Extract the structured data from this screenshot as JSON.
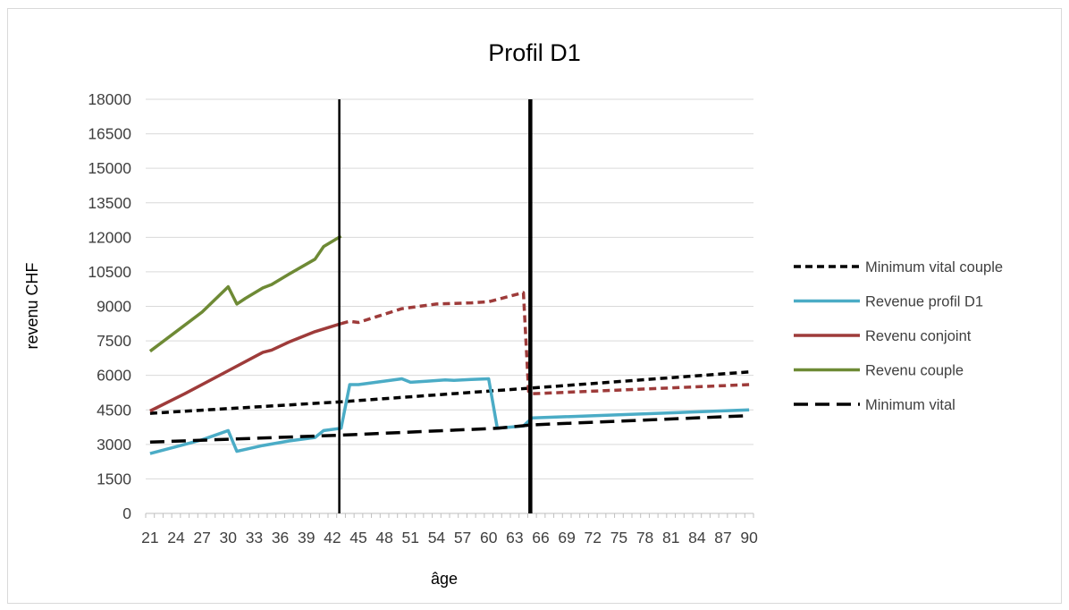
{
  "chart_data": {
    "type": "line",
    "title": "Profil D1",
    "xlabel": "âge",
    "ylabel": "revenu CHF",
    "x_min": 21,
    "x_max": 90,
    "x_tick_labels": [
      "21",
      "24",
      "27",
      "30",
      "33",
      "36",
      "39",
      "42",
      "45",
      "48",
      "51",
      "54",
      "57",
      "60",
      "63",
      "66",
      "69",
      "72",
      "75",
      "78",
      "81",
      "84",
      "87",
      "90"
    ],
    "ylim": [
      0,
      18000
    ],
    "y_ticks": [
      "0",
      "1500",
      "3000",
      "4500",
      "6000",
      "7500",
      "9000",
      "10500",
      "12000",
      "13500",
      "15000",
      "16500",
      "18000"
    ],
    "grid": "horizontal",
    "legend_position": "right",
    "vertical_markers": [
      {
        "x": 42.8,
        "style": "thin"
      },
      {
        "x": 64.8,
        "style": "thick"
      }
    ],
    "series": [
      {
        "name": "Minimum vital couple",
        "color": "#000000",
        "dash": "short",
        "points": [
          [
            21,
            4350
          ],
          [
            43,
            4850
          ],
          [
            65,
            5450
          ],
          [
            90,
            6150
          ]
        ]
      },
      {
        "name": "Revenue profil D1",
        "color": "#4bacc6",
        "dash": "solid",
        "points": [
          [
            21,
            2600
          ],
          [
            24,
            2900
          ],
          [
            27,
            3200
          ],
          [
            30,
            3600
          ],
          [
            31,
            2700
          ],
          [
            34,
            2950
          ],
          [
            37,
            3150
          ],
          [
            40,
            3300
          ],
          [
            41,
            3600
          ],
          [
            43,
            3700
          ],
          [
            44,
            5600
          ],
          [
            45,
            5600
          ],
          [
            48,
            5750
          ],
          [
            50,
            5850
          ],
          [
            51,
            5700
          ],
          [
            53,
            5750
          ],
          [
            55,
            5800
          ],
          [
            56,
            5780
          ],
          [
            58,
            5820
          ],
          [
            60,
            5850
          ],
          [
            61,
            3700
          ],
          [
            64,
            3800
          ],
          [
            65,
            4150
          ],
          [
            90,
            4500
          ]
        ]
      },
      {
        "name": "Revenu conjoint",
        "color": "#9e3b3a",
        "dash": "mixed",
        "points": [
          [
            21,
            4450
          ],
          [
            25,
            5200
          ],
          [
            30,
            6200
          ],
          [
            33,
            6800
          ],
          [
            34,
            7000
          ],
          [
            35,
            7100
          ],
          [
            37,
            7450
          ],
          [
            40,
            7900
          ],
          [
            43,
            8250
          ],
          [
            44,
            8350
          ],
          [
            45,
            8300
          ],
          [
            50,
            8900
          ],
          [
            54,
            9100
          ],
          [
            58,
            9150
          ],
          [
            60,
            9200
          ],
          [
            64,
            9600
          ],
          [
            64.6,
            5300
          ],
          [
            65,
            5200
          ],
          [
            90,
            5600
          ]
        ],
        "solid_until": 43
      },
      {
        "name": "Revenu couple",
        "color": "#6e8a35",
        "dash": "solid",
        "points": [
          [
            21,
            7050
          ],
          [
            24,
            7900
          ],
          [
            27,
            8750
          ],
          [
            30,
            9850
          ],
          [
            31,
            9100
          ],
          [
            32,
            9350
          ],
          [
            34,
            9800
          ],
          [
            35,
            9950
          ],
          [
            37,
            10400
          ],
          [
            40,
            11050
          ],
          [
            41,
            11600
          ],
          [
            43,
            12050
          ]
        ]
      },
      {
        "name": "Minimum vital",
        "color": "#000000",
        "dash": "long",
        "points": [
          [
            21,
            3100
          ],
          [
            43,
            3400
          ],
          [
            61,
            3700
          ],
          [
            65,
            3850
          ],
          [
            90,
            4250
          ]
        ]
      }
    ]
  }
}
